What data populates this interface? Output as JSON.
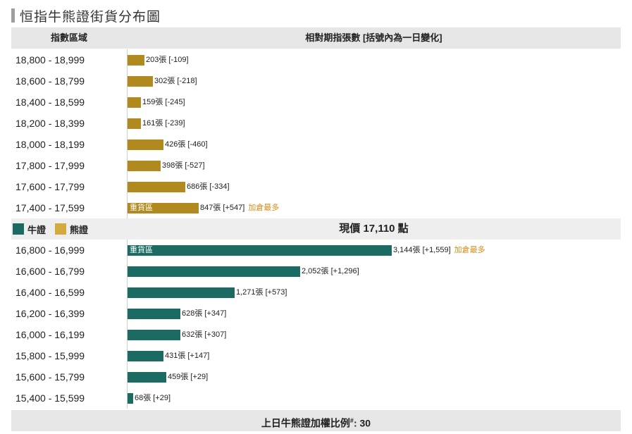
{
  "page_title": "恒指牛熊證街貨分布圖",
  "header": {
    "col_range": "指數區域",
    "col_contracts": "相對期指張數 [括號內為一日變化]"
  },
  "legend": {
    "bull_label": "牛證",
    "bear_label": "熊證",
    "bull_color": "#1b6b63",
    "bear_color": "#b08a1e"
  },
  "current_price": "現價 17,110 點",
  "heavy_zone_label": "重貨區",
  "max_added_label": "加倉最多",
  "unit": "張",
  "footer": {
    "text": "上日牛熊證加權比例",
    "marker": "#",
    "value_text": ": 30"
  },
  "chart_data": {
    "type": "bar",
    "orientation": "horizontal",
    "xlim": [
      0,
      3144
    ],
    "series": [
      {
        "name": "熊證",
        "color": "#b08a1e",
        "categories": [
          "18,800 - 18,999",
          "18,600 - 18,799",
          "18,400 - 18,599",
          "18,200 - 18,399",
          "18,000 - 18,199",
          "17,800 - 17,999",
          "17,600 - 17,799",
          "17,400 - 17,599"
        ],
        "values": [
          203,
          302,
          159,
          161,
          426,
          398,
          686,
          847
        ],
        "value_labels": [
          "203張 [-109]",
          "302張 [-218]",
          "159張 [-245]",
          "161張 [-239]",
          "426張 [-460]",
          "398張 [-527]",
          "686張 [-334]",
          "847張 [+547]"
        ],
        "changes": [
          -109,
          -218,
          -245,
          -239,
          -460,
          -527,
          -334,
          547
        ],
        "heavy_zone_index": 7,
        "max_added_index": 7
      },
      {
        "name": "牛證",
        "color": "#1b6b63",
        "categories": [
          "16,800 - 16,999",
          "16,600 - 16,799",
          "16,400 - 16,599",
          "16,200 - 16,399",
          "16,000 - 16,199",
          "15,800 - 15,999",
          "15,600 - 15,799",
          "15,400 - 15,599"
        ],
        "values": [
          3144,
          2052,
          1271,
          628,
          632,
          431,
          459,
          68
        ],
        "value_labels": [
          "3,144張 [+1,559]",
          "2,052張 [+1,296]",
          "1,271張 [+573]",
          "628張 [+347]",
          "632張 [+307]",
          "431張 [+147]",
          "459張 [+29]",
          "68張 [+29]"
        ],
        "changes": [
          1559,
          1296,
          573,
          347,
          307,
          147,
          29,
          29
        ],
        "heavy_zone_index": 0,
        "max_added_index": 0
      }
    ]
  }
}
